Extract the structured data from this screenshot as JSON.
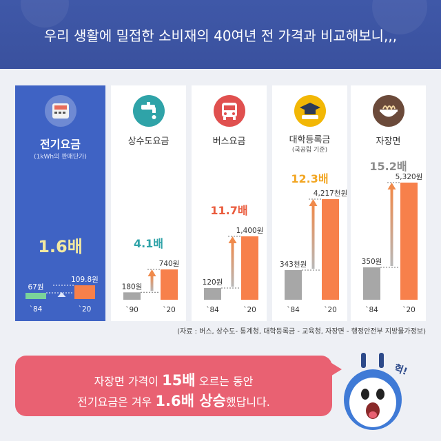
{
  "header": {
    "title": "우리 생활에 밀접한 소비재의 40여년 전 가격과 비교해보니,,,"
  },
  "colors": {
    "header_bg": "#3f58a8",
    "electricity_card": "#3f63c4",
    "bar_old": "#a7a7a7",
    "bar_new": "#f7804b",
    "bubble": "#e96172",
    "arrow": "#f08a4b"
  },
  "chart_data": [
    {
      "type": "bar",
      "title": "전기요금",
      "subtitle": "(1kWh의 판매단가)",
      "ratio": "1.6배",
      "categories": [
        "`84",
        "`20"
      ],
      "values": [
        67,
        109.8
      ],
      "value_labels": [
        "67원",
        "109.8원"
      ],
      "unit": "원"
    },
    {
      "type": "bar",
      "title": "상수도요금",
      "ratio": "4.1배",
      "categories": [
        "`90",
        "`20"
      ],
      "values": [
        180,
        740
      ],
      "value_labels": [
        "180원",
        "740원"
      ],
      "unit": "원"
    },
    {
      "type": "bar",
      "title": "버스요금",
      "ratio": "11.7배",
      "categories": [
        "`84",
        "`20"
      ],
      "values": [
        120,
        1400
      ],
      "value_labels": [
        "120원",
        "1,400원"
      ],
      "unit": "원"
    },
    {
      "type": "bar",
      "title": "대학등록금",
      "subtitle": "(국공립 기준)",
      "ratio": "12.3배",
      "categories": [
        "`84",
        "`20"
      ],
      "values": [
        343,
        4217
      ],
      "value_labels": [
        "343천원",
        "4,217천원"
      ],
      "unit": "천원"
    },
    {
      "type": "bar",
      "title": "자장면",
      "ratio": "15.2배",
      "categories": [
        "`84",
        "`20"
      ],
      "values": [
        350,
        5320
      ],
      "value_labels": [
        "350원",
        "5,320원"
      ],
      "unit": "원"
    }
  ],
  "source": "(자료 : 버스, 상수도- 통계청, 대학등록금 - 교육청, 자장면 - 행정안전부 지방물가정보)",
  "bubble": {
    "line1_pre": "자장면 가격이",
    "line1_bold": "15배",
    "line1_post": "오르는 동안",
    "line2_pre": "전기요금은 겨우",
    "line2_bold": "1.6배 상승",
    "line2_post": "했답니다."
  },
  "mascot": {
    "exclaim": "헉!"
  }
}
